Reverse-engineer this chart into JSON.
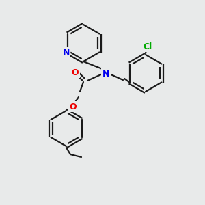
{
  "background_color": "#e8eaea",
  "bond_color": "#1a1a1a",
  "atom_colors": {
    "N": "#0000ee",
    "O": "#ee0000",
    "Cl": "#00aa00",
    "C": "#1a1a1a"
  },
  "figsize": [
    3.0,
    3.0
  ],
  "dpi": 100
}
